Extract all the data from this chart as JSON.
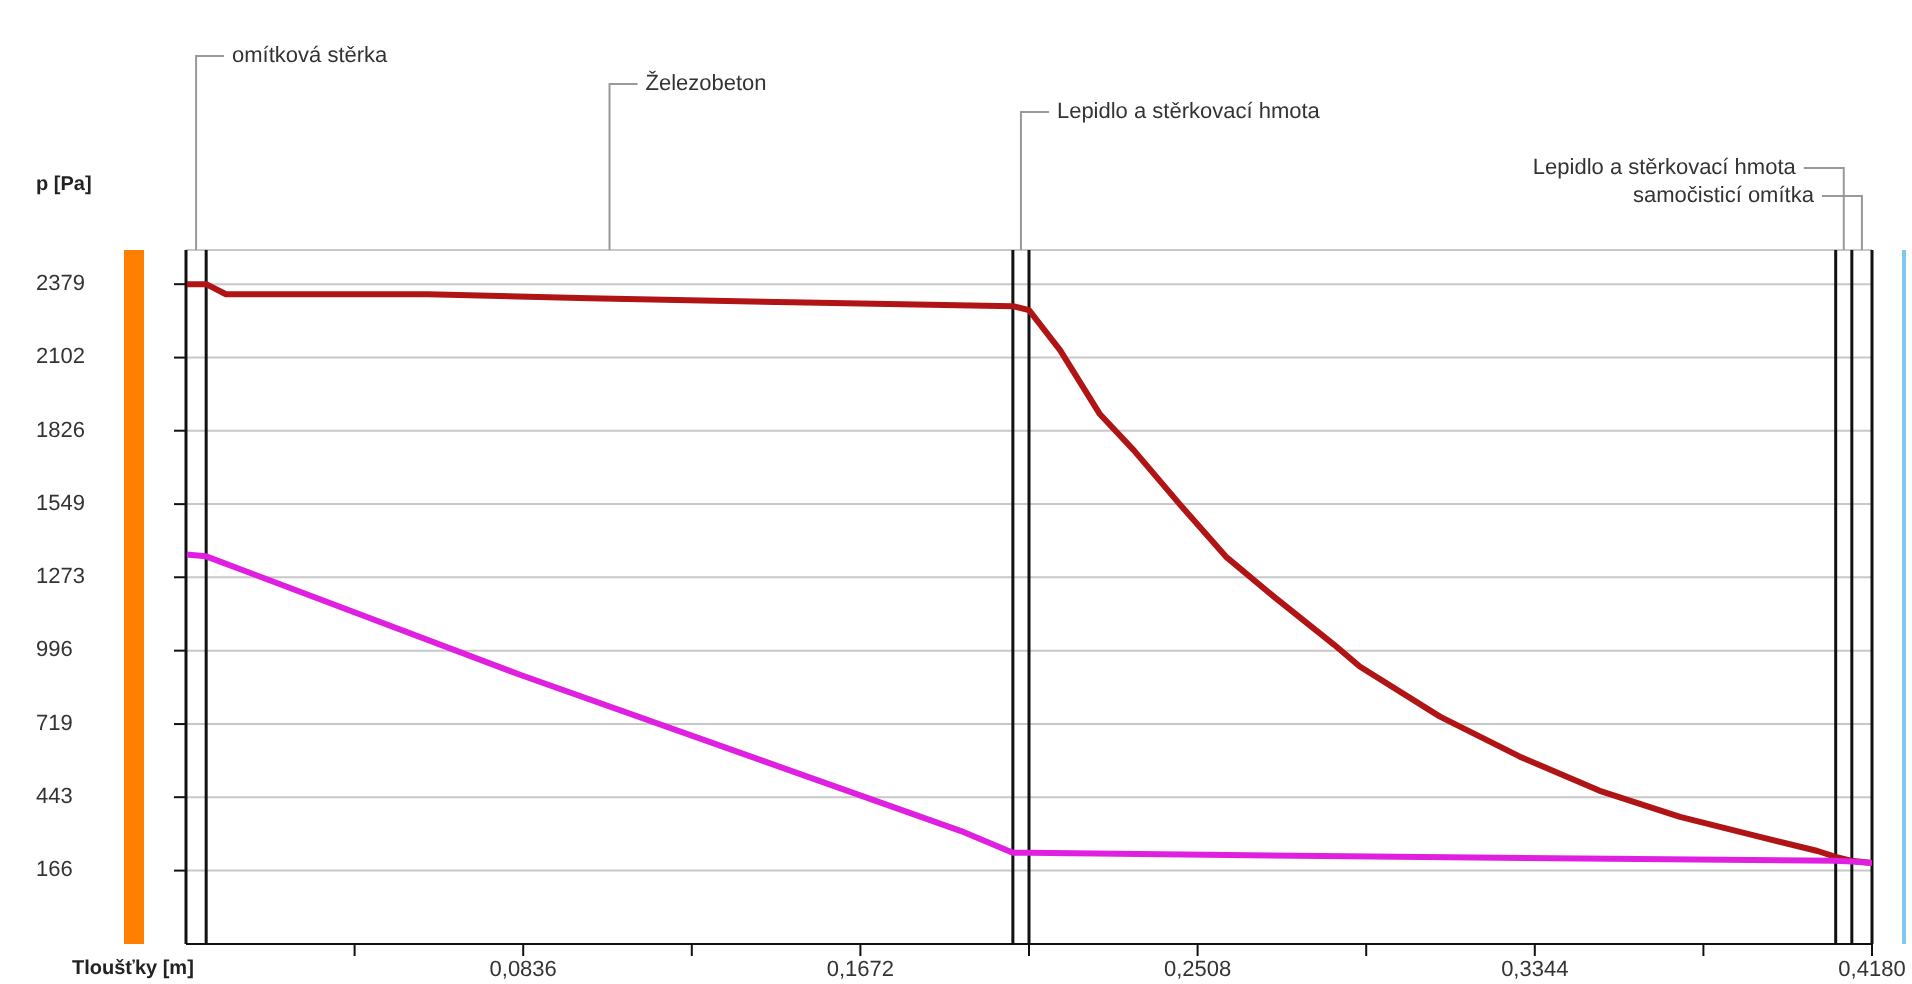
{
  "chart_data": {
    "type": "line",
    "xlabel": "Tloušťky [m]",
    "ylabel": "p [Pa]",
    "xlim": [
      0,
      0.418
    ],
    "xticks": [
      {
        "value": 0.0418,
        "label": null
      },
      {
        "value": 0.0836,
        "label": "0,0836"
      },
      {
        "value": 0.1254,
        "label": null
      },
      {
        "value": 0.1672,
        "label": "0,1672"
      },
      {
        "value": 0.209,
        "label": null
      },
      {
        "value": 0.2508,
        "label": "0,2508"
      },
      {
        "value": 0.2926,
        "label": null
      },
      {
        "value": 0.3344,
        "label": "0,3344"
      },
      {
        "value": 0.3762,
        "label": null
      },
      {
        "value": 0.418,
        "label": "0,4180"
      }
    ],
    "ylim": [
      -111,
      2508
    ],
    "yticks": [
      166,
      443,
      719,
      996,
      1273,
      1549,
      1826,
      2102,
      2379
    ],
    "grid": "y",
    "series": [
      {
        "color": "#b01414",
        "x": [
          0,
          0.005,
          0.0099,
          0.06,
          0.1,
          0.15,
          0.205,
          0.209,
          0.2167,
          0.2266,
          0.235,
          0.2464,
          0.2578,
          0.2697,
          0.2846,
          0.291,
          0.3109,
          0.3307,
          0.3505,
          0.3704,
          0.3902,
          0.4045,
          0.409,
          0.413,
          0.418
        ],
        "values": [
          2379,
          2379,
          2341,
          2341,
          2326,
          2311,
          2296,
          2281,
          2130,
          1888,
          1752,
          1548,
          1351,
          1200,
          1019,
          936,
          747,
          596,
          467,
          369,
          293,
          240,
          218,
          203,
          195
        ]
      },
      {
        "color": "#e020e0",
        "x": [
          0,
          0.005,
          0.0828,
          0.192,
          0.205,
          0.209,
          0.3,
          0.409,
          0.413,
          0.418
        ],
        "values": [
          1359,
          1352,
          905,
          316,
          233,
          233,
          218,
          203,
          200,
          195
        ]
      }
    ],
    "ref_lines": [
      {
        "axis": "x",
        "value": 0
      },
      {
        "axis": "x",
        "value": 0.005
      },
      {
        "axis": "x",
        "value": 0.205
      },
      {
        "axis": "x",
        "value": 0.209
      },
      {
        "axis": "x",
        "value": 0.409
      },
      {
        "axis": "x",
        "value": 0.413
      },
      {
        "axis": "x",
        "value": 0.418
      }
    ],
    "annotations": [
      "omítková stěrka",
      "Železobeton",
      "Lepidlo a stěrkovací hmota",
      "Lepidlo a stěrkovací hmota",
      "samočisticí omítka"
    ]
  }
}
